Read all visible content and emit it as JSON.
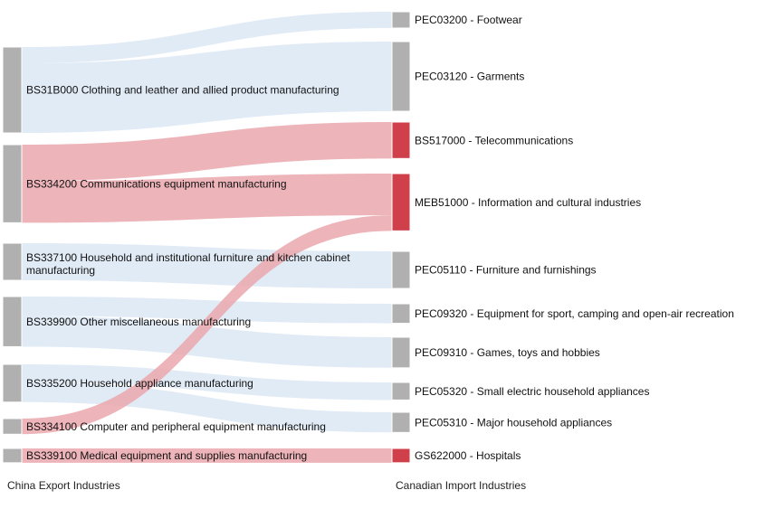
{
  "colors": {
    "node_default": "#b0b0b0",
    "node_highlight": "#d0404a",
    "link_default": "#dce7f4",
    "link_highlight": "#eaa7ad"
  },
  "chart_data": {
    "type": "sankey",
    "left_axis_title": "China Export Industries",
    "right_axis_title": "Canadian Import Industries",
    "sources": [
      {
        "id": "BS31B000",
        "label": "BS31B000 Clothing and leather and allied product manufacturing",
        "value": 132
      },
      {
        "id": "BS334200",
        "label": "BS334200 Communications equipment manufacturing",
        "value": 120
      },
      {
        "id": "BS337100",
        "label": "BS337100 Household and institutional furniture and kitchen cabinet manufacturing",
        "value": 57
      },
      {
        "id": "BS339900",
        "label": "BS339900 Other miscellaneous manufacturing",
        "value": 77
      },
      {
        "id": "BS335200",
        "label": "BS335200 Household appliance manufacturing",
        "value": 58
      },
      {
        "id": "BS334100",
        "label": "BS334100 Computer and peripheral equipment manufacturing",
        "value": 24
      },
      {
        "id": "BS339100",
        "label": "BS339100 Medical equipment and supplies manufacturing",
        "value": 22
      }
    ],
    "targets": [
      {
        "id": "PEC03200",
        "label": "PEC03200 - Footwear",
        "value": 25
      },
      {
        "id": "PEC03120",
        "label": "PEC03120 - Garments",
        "value": 107
      },
      {
        "id": "BS517000",
        "label": "BS517000 - Telecommunications",
        "value": 56
      },
      {
        "id": "MEB51000",
        "label": "MEB51000 - Information and cultural industries",
        "value": 88
      },
      {
        "id": "PEC05110",
        "label": "PEC05110 - Furniture and furnishings",
        "value": 57
      },
      {
        "id": "PEC09320",
        "label": "PEC09320 - Equipment for sport, camping and open-air recreation",
        "value": 30
      },
      {
        "id": "PEC09310",
        "label": "PEC09310 - Games, toys and hobbies",
        "value": 47
      },
      {
        "id": "PEC05320",
        "label": "PEC05320 - Small electric household appliances",
        "value": 27
      },
      {
        "id": "PEC05310",
        "label": "PEC05310 - Major household appliances",
        "value": 31
      },
      {
        "id": "GS622000",
        "label": "GS622000 - Hospitals",
        "value": 22
      }
    ],
    "links": [
      {
        "source": "BS31B000",
        "target": "PEC03200",
        "value": 25
      },
      {
        "source": "BS31B000",
        "target": "PEC03120",
        "value": 107
      },
      {
        "source": "BS334200",
        "target": "BS517000",
        "value": 56
      },
      {
        "source": "BS334200",
        "target": "MEB51000",
        "value": 64
      },
      {
        "source": "BS337100",
        "target": "PEC05110",
        "value": 57
      },
      {
        "source": "BS339900",
        "target": "PEC09320",
        "value": 30
      },
      {
        "source": "BS339900",
        "target": "PEC09310",
        "value": 47
      },
      {
        "source": "BS335200",
        "target": "PEC05320",
        "value": 27
      },
      {
        "source": "BS335200",
        "target": "PEC05310",
        "value": 31
      },
      {
        "source": "BS334100",
        "target": "MEB51000",
        "value": 24
      },
      {
        "source": "BS339100",
        "target": "GS622000",
        "value": 22
      }
    ],
    "highlighted_targets": [
      "BS517000",
      "MEB51000",
      "GS622000"
    ]
  }
}
